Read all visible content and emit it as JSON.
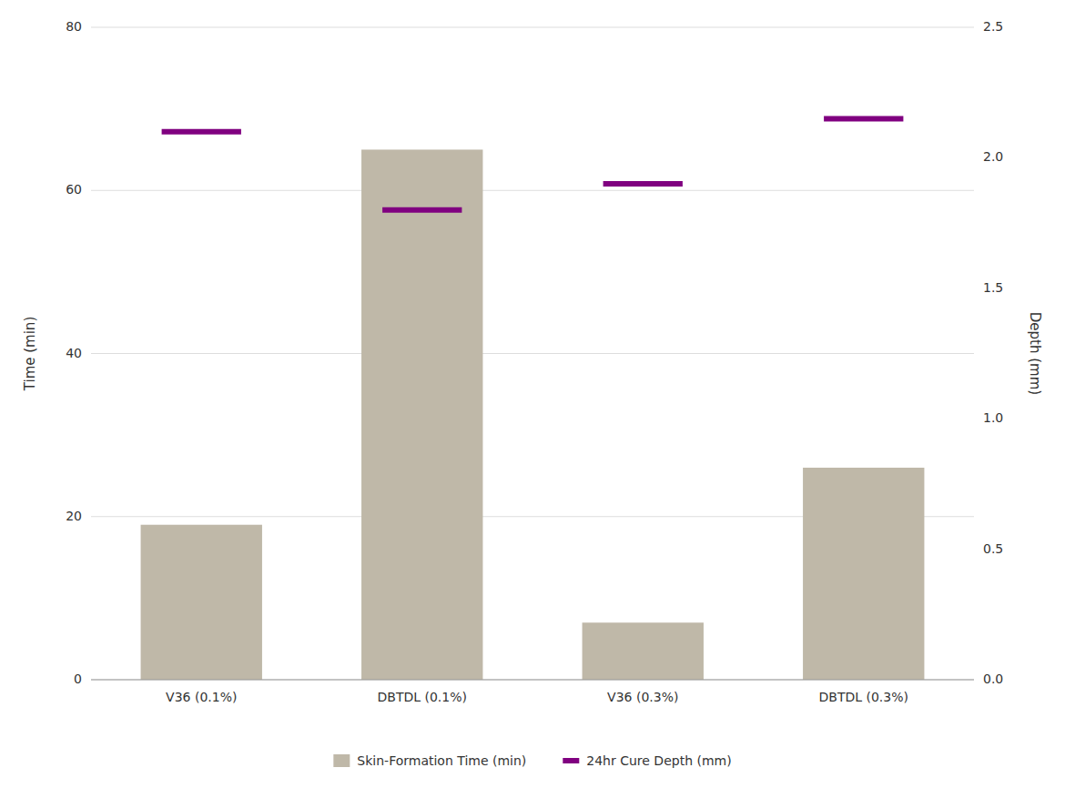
{
  "chart_data": {
    "type": "bar",
    "categories": [
      "V36 (0.1%)",
      "DBTDL (0.1%)",
      "V36 (0.3%)",
      "DBTDL (0.3%)"
    ],
    "series": [
      {
        "name": "Skin-Formation Time (min)",
        "type": "bar",
        "color": "#bfb8a8",
        "values": [
          19,
          65,
          7,
          26
        ]
      },
      {
        "name": "24hr Cure Depth (mm)",
        "type": "segment",
        "color": "#800080",
        "axis": "y2",
        "values": [
          2.1,
          1.8,
          1.9,
          2.15
        ]
      }
    ],
    "ylabel": "Time (min)",
    "y2label": "Depth (mm)",
    "ylim": [
      0,
      80
    ],
    "yticks": [
      0,
      20,
      40,
      60,
      80
    ],
    "y2lim": [
      0,
      2.5
    ],
    "y2ticks": [
      {
        "value": 0,
        "label": "0.0"
      },
      0.5,
      {
        "value": 1.0,
        "label": "1.0"
      },
      1.5,
      {
        "value": 2.0,
        "label": "2.0"
      },
      2.5
    ],
    "grid": true,
    "legend": "bottom"
  }
}
